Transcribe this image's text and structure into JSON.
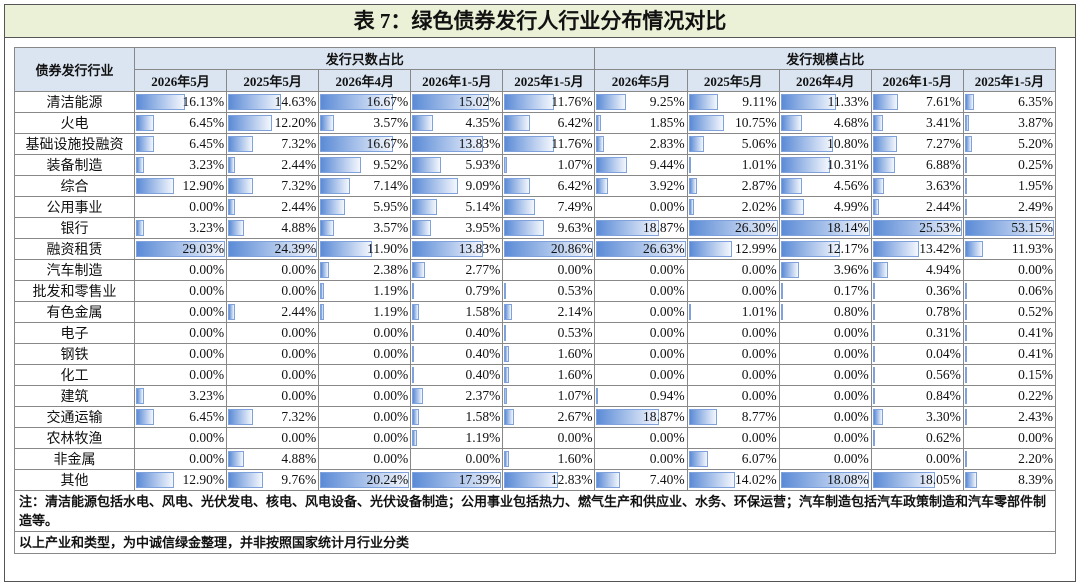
{
  "title": "表 7：绿色债券发行人行业分布情况对比",
  "table": {
    "corner": "债券发行行业",
    "groups": [
      "发行只数占比",
      "发行规模占比"
    ],
    "columns": [
      "2026年5月",
      "2025年5月",
      "2026年4月",
      "2026年1-5月",
      "2025年1-5月",
      "2026年5月",
      "2025年5月",
      "2026年4月",
      "2026年1-5月",
      "2025年1-5月"
    ],
    "rows": [
      [
        "清洁能源",
        "16.13%",
        "14.63%",
        "16.67%",
        "15.02%",
        "11.76%",
        "9.25%",
        "9.11%",
        "11.33%",
        "7.61%",
        "6.35%"
      ],
      [
        "火电",
        "6.45%",
        "12.20%",
        "3.57%",
        "4.35%",
        "6.42%",
        "1.85%",
        "10.75%",
        "4.68%",
        "3.41%",
        "3.87%"
      ],
      [
        "基础设施投融资",
        "6.45%",
        "7.32%",
        "16.67%",
        "13.83%",
        "11.76%",
        "2.83%",
        "5.06%",
        "10.80%",
        "7.27%",
        "5.20%"
      ],
      [
        "装备制造",
        "3.23%",
        "2.44%",
        "9.52%",
        "5.93%",
        "1.07%",
        "9.44%",
        "1.01%",
        "10.31%",
        "6.88%",
        "0.25%"
      ],
      [
        "综合",
        "12.90%",
        "7.32%",
        "7.14%",
        "9.09%",
        "6.42%",
        "3.92%",
        "2.87%",
        "4.56%",
        "3.63%",
        "1.95%"
      ],
      [
        "公用事业",
        "0.00%",
        "2.44%",
        "5.95%",
        "5.14%",
        "7.49%",
        "0.00%",
        "2.02%",
        "4.99%",
        "2.44%",
        "2.49%"
      ],
      [
        "银行",
        "3.23%",
        "4.88%",
        "3.57%",
        "3.95%",
        "9.63%",
        "18.87%",
        "26.30%",
        "18.14%",
        "25.53%",
        "53.15%"
      ],
      [
        "融资租赁",
        "29.03%",
        "24.39%",
        "11.90%",
        "13.83%",
        "20.86%",
        "26.63%",
        "12.99%",
        "12.17%",
        "13.42%",
        "11.93%"
      ],
      [
        "汽车制造",
        "0.00%",
        "0.00%",
        "2.38%",
        "2.77%",
        "0.00%",
        "0.00%",
        "0.00%",
        "3.96%",
        "4.94%",
        "0.00%"
      ],
      [
        "批发和零售业",
        "0.00%",
        "0.00%",
        "1.19%",
        "0.79%",
        "0.53%",
        "0.00%",
        "0.00%",
        "0.17%",
        "0.36%",
        "0.06%"
      ],
      [
        "有色金属",
        "0.00%",
        "2.44%",
        "1.19%",
        "1.58%",
        "2.14%",
        "0.00%",
        "1.01%",
        "0.80%",
        "0.78%",
        "0.52%"
      ],
      [
        "电子",
        "0.00%",
        "0.00%",
        "0.00%",
        "0.40%",
        "0.53%",
        "0.00%",
        "0.00%",
        "0.00%",
        "0.31%",
        "0.41%"
      ],
      [
        "钢铁",
        "0.00%",
        "0.00%",
        "0.00%",
        "0.40%",
        "1.60%",
        "0.00%",
        "0.00%",
        "0.00%",
        "0.04%",
        "0.41%"
      ],
      [
        "化工",
        "0.00%",
        "0.00%",
        "0.00%",
        "0.40%",
        "1.60%",
        "0.00%",
        "0.00%",
        "0.00%",
        "0.56%",
        "0.15%"
      ],
      [
        "建筑",
        "3.23%",
        "0.00%",
        "0.00%",
        "2.37%",
        "1.07%",
        "0.94%",
        "0.00%",
        "0.00%",
        "0.84%",
        "0.22%"
      ],
      [
        "交通运输",
        "6.45%",
        "7.32%",
        "0.00%",
        "1.58%",
        "2.67%",
        "18.87%",
        "8.77%",
        "0.00%",
        "3.30%",
        "2.43%"
      ],
      [
        "农林牧渔",
        "0.00%",
        "0.00%",
        "0.00%",
        "1.19%",
        "0.00%",
        "0.00%",
        "0.00%",
        "0.00%",
        "0.62%",
        "0.00%"
      ],
      [
        "非金属",
        "0.00%",
        "4.88%",
        "0.00%",
        "0.00%",
        "1.60%",
        "0.00%",
        "6.07%",
        "0.00%",
        "0.00%",
        "2.20%"
      ],
      [
        "其他",
        "12.90%",
        "9.76%",
        "20.24%",
        "17.39%",
        "12.83%",
        "7.40%",
        "14.02%",
        "18.08%",
        "18.05%",
        "8.39%"
      ]
    ]
  },
  "notes": [
    "注：清洁能源包括水电、风电、光伏发电、核电、风电设备、光伏设备制造；公用事业包括热力、燃气生产和供应业、水务、环保运营；汽车制造包括汽车政策制造和汽车零部件制造等。",
    "以上产业和类型，为中诚信绿金整理，并非按照国家统计月行业分类"
  ]
}
